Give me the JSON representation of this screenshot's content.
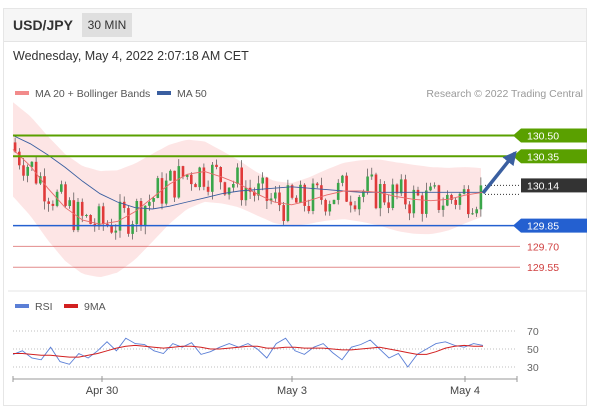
{
  "header": {
    "pair": "USD/JPY",
    "timeframe": "30 MIN",
    "datetime": "Wednesday, May 4, 2022 2:07:18 AM CET"
  },
  "chart_data": [
    {
      "type": "candlestick",
      "title": "USD/JPY 30 MIN",
      "legend": [
        {
          "name": "MA 20 + Bollinger Bands",
          "color": "#f28b8b"
        },
        {
          "name": "MA 50",
          "color": "#3a5fa0"
        }
      ],
      "credit": "Research © 2022 Trading Central",
      "price_levels": [
        {
          "label": "130.50",
          "value": 130.5,
          "kind": "resistance",
          "color": "#5aa000"
        },
        {
          "label": "130.35",
          "value": 130.35,
          "kind": "resistance",
          "color": "#5aa000"
        },
        {
          "label": "130.14",
          "value": 130.14,
          "kind": "last-price",
          "color": "#333333"
        },
        {
          "label": "129.85",
          "value": 129.85,
          "kind": "pivot",
          "color": "#2460d0"
        },
        {
          "label": "129.70",
          "value": 129.7,
          "kind": "support",
          "color": "#d04040"
        },
        {
          "label": "129.55",
          "value": 129.55,
          "kind": "support",
          "color": "#d04040"
        }
      ],
      "y_range": [
        129.4,
        130.72
      ],
      "x_ticks": [
        "Apr 30",
        "May 3",
        "May 4"
      ],
      "candle_count": 112,
      "direction": "up",
      "series": [
        {
          "name": "MA 50",
          "values": [
            130.5,
            130.44,
            130.36,
            130.27,
            130.17,
            130.08,
            130.02,
            129.98,
            129.97,
            129.99,
            130.02,
            130.05,
            130.08,
            130.1,
            130.11,
            130.12,
            130.13,
            130.12,
            130.11,
            130.1,
            130.09,
            130.09,
            130.09,
            130.09,
            130.09,
            130.09,
            130.09,
            130.09
          ]
        },
        {
          "name": "MA 20",
          "values": [
            130.4,
            130.28,
            130.12,
            129.98,
            129.89,
            129.86,
            129.88,
            129.95,
            130.05,
            130.15,
            130.22,
            130.24,
            130.2,
            130.15,
            130.08,
            130.02,
            130.0,
            130.03,
            130.07,
            130.1,
            130.1,
            130.09,
            130.06,
            130.04,
            130.03,
            130.04,
            130.07,
            130.09
          ]
        }
      ]
    },
    {
      "type": "line",
      "title": "RSI",
      "legend": [
        {
          "name": "RSI",
          "color": "#5b7fd6"
        },
        {
          "name": "9MA",
          "color": "#d22020"
        }
      ],
      "ylim": [
        20,
        80
      ],
      "y_ticks": [
        70,
        50,
        30
      ],
      "series": [
        {
          "name": "RSI",
          "values": [
            44,
            48,
            40,
            38,
            52,
            36,
            33,
            45,
            40,
            48,
            58,
            48,
            62,
            56,
            55,
            48,
            45,
            56,
            52,
            57,
            44,
            47,
            52,
            56,
            52,
            56,
            50,
            40,
            56,
            62,
            48,
            44,
            52,
            56,
            46,
            38,
            52,
            55,
            60,
            50,
            40,
            45,
            30,
            44,
            50,
            56,
            58,
            54,
            52,
            56,
            54
          ]
        },
        {
          "name": "9MA",
          "values": [
            45,
            45,
            44,
            43,
            43,
            42,
            41,
            41,
            43,
            45,
            48,
            51,
            53,
            54,
            53,
            52,
            51,
            52,
            53,
            53,
            52,
            50,
            50,
            51,
            52,
            53,
            53,
            51,
            51,
            52,
            52,
            51,
            51,
            51,
            50,
            49,
            49,
            50,
            51,
            52,
            50,
            48,
            46,
            44,
            44,
            47,
            51,
            53,
            54,
            53,
            53
          ]
        }
      ]
    }
  ]
}
